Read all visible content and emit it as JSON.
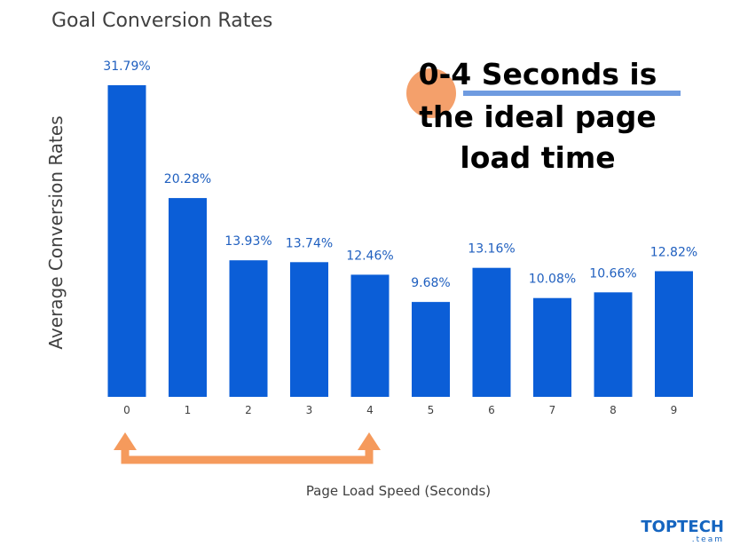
{
  "chart_data": {
    "type": "bar",
    "title": "Goal Conversion Rates",
    "xlabel": "Page Load Speed (Seconds)",
    "ylabel": "Average Conversion Rates",
    "categories": [
      "0",
      "1",
      "2",
      "3",
      "4",
      "5",
      "6",
      "7",
      "8",
      "9"
    ],
    "values": [
      31.79,
      20.28,
      13.93,
      13.74,
      12.46,
      9.68,
      13.16,
      10.08,
      10.66,
      12.82
    ],
    "value_labels": [
      "31.79%",
      "20.28%",
      "13.93%",
      "13.74%",
      "12.46%",
      "9.68%",
      "13.16%",
      "10.08%",
      "10.66%",
      "12.82%"
    ],
    "ylim": [
      0,
      31.79
    ],
    "grid": false,
    "bar_color": "#0b5ed7"
  },
  "annotation": {
    "lines": [
      "0-4 Seconds is",
      "the ideal page",
      "load time"
    ],
    "circle_color": "#f4a06b",
    "underline_color": "#6f9be0",
    "arrow_color": "#f59a5c",
    "arrow_from": "0",
    "arrow_to": "4"
  },
  "brand": {
    "main": "TOPTECH",
    "sub": ".team"
  }
}
